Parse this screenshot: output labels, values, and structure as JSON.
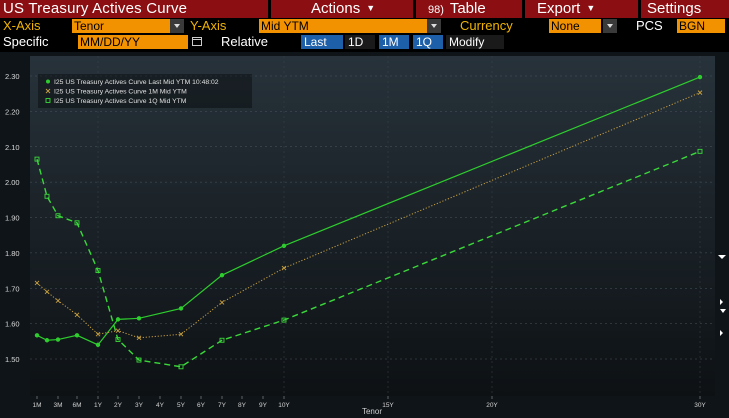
{
  "header": {
    "title": "US Treasury Actives Curve",
    "actions_label": "Actions",
    "table_number": "98)",
    "table_label": "Table",
    "export_label": "Export",
    "settings_label": "Settings"
  },
  "controls": {
    "x_axis_label": "X-Axis",
    "x_axis_value": "Tenor",
    "y_axis_label": "Y-Axis",
    "y_axis_value": "Mid YTM",
    "currency_label": "Currency",
    "currency_value": "None",
    "pcs_label": "PCS",
    "pcs_value": "BGN",
    "specific_label": "Specific",
    "date_placeholder": "MM/DD/YY",
    "relative_label": "Relative",
    "relative_options": [
      "Last",
      "1D",
      "1M",
      "1Q"
    ],
    "modify_label": "Modify"
  },
  "colors": {
    "bar_red": "#8a0e12",
    "field_orange": "#f39200",
    "last_series": "#2ecc2e",
    "one_month_series": "#c8a040",
    "one_quarter_series": "#3ad83a"
  },
  "chart_data": {
    "type": "line",
    "xlabel": "Tenor",
    "ylabel": "",
    "ylim": [
      1.42,
      2.34
    ],
    "yticks": [
      "1.50",
      "1.60",
      "1.70",
      "1.80",
      "1.90",
      "2.00",
      "2.10",
      "2.20",
      "2.30"
    ],
    "ytick_values": [
      1.5,
      1.6,
      1.7,
      1.8,
      1.9,
      2.0,
      2.1,
      2.2,
      2.3
    ],
    "tenor_ticks": [
      "1M",
      "3M",
      "6M",
      "1Y",
      "2Y",
      "3Y",
      "4Y",
      "5Y",
      "6Y",
      "7Y",
      "8Y",
      "9Y",
      "10Y",
      "15Y",
      "20Y",
      "30Y"
    ],
    "tenor_years": [
      0.083,
      0.25,
      0.5,
      1,
      2,
      3,
      4,
      5,
      6,
      7,
      8,
      9,
      10,
      15,
      20,
      30
    ],
    "legend_placement": "top-left",
    "series": [
      {
        "name": "I25 US Treasury Actives Curve Last Mid YTM 10:48:02",
        "style": "solid",
        "marker": "dot",
        "x": [
          "1M",
          "2M",
          "3M",
          "6M",
          "1Y",
          "2Y",
          "3Y",
          "5Y",
          "7Y",
          "10Y",
          "30Y"
        ],
        "y": [
          1.567,
          1.553,
          1.555,
          1.567,
          1.54,
          1.612,
          1.615,
          1.643,
          1.737,
          1.82,
          2.297
        ]
      },
      {
        "name": "I25 US Treasury Actives Curve 1M Mid YTM",
        "style": "dotted",
        "marker": "x",
        "x": [
          "1M",
          "2M",
          "3M",
          "6M",
          "1Y",
          "2Y",
          "3Y",
          "5Y",
          "7Y",
          "10Y",
          "30Y"
        ],
        "y": [
          1.715,
          1.69,
          1.665,
          1.625,
          1.57,
          1.58,
          1.56,
          1.57,
          1.66,
          1.757,
          2.253
        ]
      },
      {
        "name": "I25 US Treasury Actives Curve 1Q Mid YTM",
        "style": "dashed",
        "marker": "square",
        "x": [
          "1M",
          "2M",
          "3M",
          "6M",
          "1Y",
          "2Y",
          "3Y",
          "5Y",
          "7Y",
          "10Y",
          "30Y"
        ],
        "y": [
          2.065,
          1.96,
          1.905,
          1.885,
          1.75,
          1.555,
          1.497,
          1.478,
          1.553,
          1.61,
          2.087
        ]
      }
    ]
  }
}
